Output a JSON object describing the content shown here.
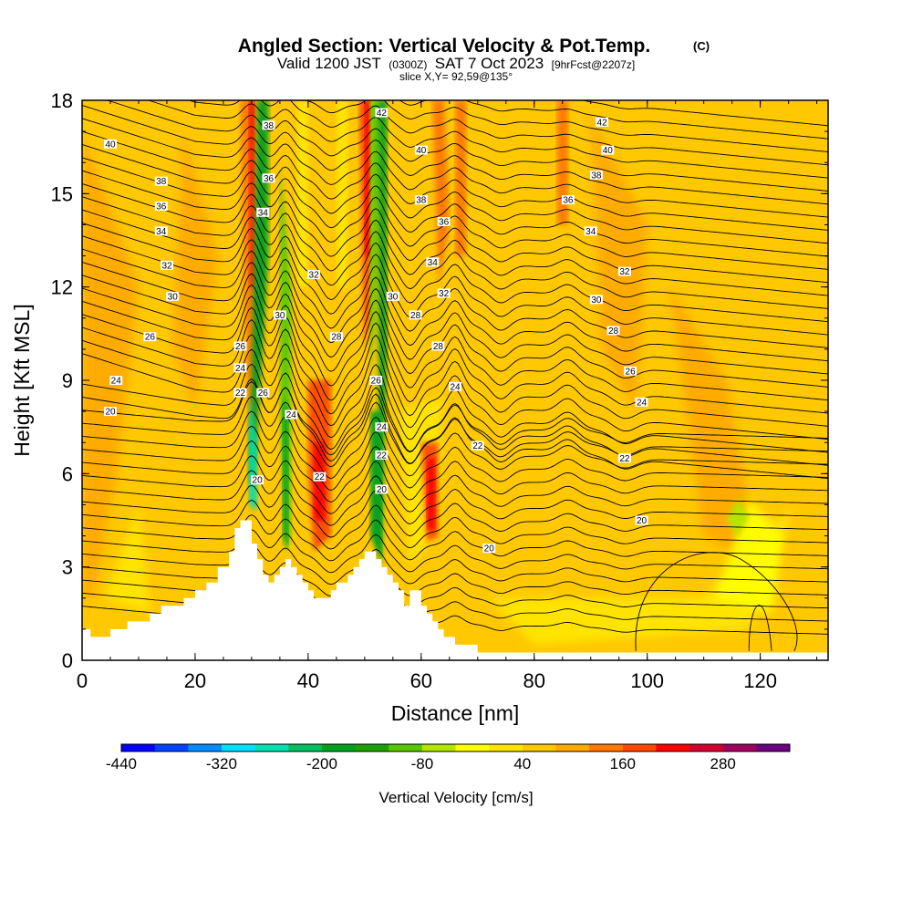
{
  "chart_data": {
    "type": "heatmap",
    "title": "Angled Section: Vertical Velocity & Pot.Temp.",
    "title_mark": "(C)",
    "subtitle_parts": [
      "Valid 1200 JST",
      "(0300Z)",
      "SAT 7 Oct 2023",
      "[9hrFcst@2207z]"
    ],
    "slice_label": "slice X,Y= 92,59@135°",
    "xlabel": "Distance [nm]",
    "ylabel": "Height [Kft MSL]",
    "xlim": [
      0,
      132
    ],
    "ylim": [
      0,
      18
    ],
    "x_ticks": [
      0,
      20,
      40,
      60,
      80,
      100,
      120
    ],
    "y_ticks": [
      0,
      3,
      6,
      9,
      12,
      15,
      18
    ],
    "colorbar": {
      "label": "Vertical Velocity [cm/s]",
      "tick_labels": [
        -440,
        -320,
        -200,
        -80,
        40,
        160,
        280
      ],
      "bins": [
        -440,
        -400,
        -360,
        -320,
        -280,
        -240,
        -200,
        -160,
        -120,
        -80,
        -40,
        0,
        40,
        80,
        120,
        160,
        200,
        240,
        280,
        320
      ],
      "colors": [
        "#0000ff",
        "#0044ff",
        "#008cff",
        "#00e0ff",
        "#00e0b0",
        "#00c060",
        "#00a020",
        "#1ea000",
        "#5ac800",
        "#b4e600",
        "#ffff00",
        "#ffe600",
        "#ffc800",
        "#ffaa00",
        "#ff7800",
        "#ff4800",
        "#ff0000",
        "#d20030",
        "#a00060",
        "#6c0080"
      ]
    },
    "terrain_profile": [
      [
        0,
        1
      ],
      [
        1.5,
        1
      ],
      [
        1.5,
        0.75
      ],
      [
        5,
        0.75
      ],
      [
        5,
        1
      ],
      [
        8,
        1
      ],
      [
        8,
        1.25
      ],
      [
        12,
        1.25
      ],
      [
        12,
        1.5
      ],
      [
        14,
        1.5
      ],
      [
        14,
        1.75
      ],
      [
        18,
        1.75
      ],
      [
        18,
        2
      ],
      [
        20,
        2
      ],
      [
        20,
        2.25
      ],
      [
        22,
        2.25
      ],
      [
        22,
        2.5
      ],
      [
        24,
        2.5
      ],
      [
        24,
        3
      ],
      [
        26,
        3
      ],
      [
        26,
        3.5
      ],
      [
        27,
        3.5
      ],
      [
        27,
        4.25
      ],
      [
        28,
        4.25
      ],
      [
        28,
        4.5
      ],
      [
        30,
        4.5
      ],
      [
        30,
        3.75
      ],
      [
        31,
        3.75
      ],
      [
        31,
        3.25
      ],
      [
        32,
        3.25
      ],
      [
        32,
        2.75
      ],
      [
        33,
        2.75
      ],
      [
        33,
        2.5
      ],
      [
        34,
        2.5
      ],
      [
        34,
        2.75
      ],
      [
        35,
        2.75
      ],
      [
        35,
        3
      ],
      [
        36,
        3
      ],
      [
        36,
        3.25
      ],
      [
        37,
        3.25
      ],
      [
        37,
        3
      ],
      [
        38,
        3
      ],
      [
        38,
        2.75
      ],
      [
        39,
        2.75
      ],
      [
        39,
        2.5
      ],
      [
        40,
        2.5
      ],
      [
        40,
        2.25
      ],
      [
        41,
        2.25
      ],
      [
        41,
        2
      ],
      [
        44,
        2
      ],
      [
        44,
        2.25
      ],
      [
        45,
        2.25
      ],
      [
        45,
        2.5
      ],
      [
        47,
        2.5
      ],
      [
        47,
        2.75
      ],
      [
        48,
        2.75
      ],
      [
        48,
        3
      ],
      [
        49,
        3
      ],
      [
        49,
        3.25
      ],
      [
        50,
        3.25
      ],
      [
        50,
        3.5
      ],
      [
        52,
        3.5
      ],
      [
        52,
        3.25
      ],
      [
        53,
        3.25
      ],
      [
        53,
        3
      ],
      [
        54,
        3
      ],
      [
        54,
        2.75
      ],
      [
        55,
        2.75
      ],
      [
        55,
        2.5
      ],
      [
        56,
        2.5
      ],
      [
        56,
        2.25
      ],
      [
        57,
        2.25
      ],
      [
        57,
        1.75
      ],
      [
        58,
        1.75
      ],
      [
        58,
        2.25
      ],
      [
        60,
        2.25
      ],
      [
        60,
        1.75
      ],
      [
        61,
        1.75
      ],
      [
        61,
        1.5
      ],
      [
        62,
        1.5
      ],
      [
        62,
        1.25
      ],
      [
        63,
        1.25
      ],
      [
        63,
        1
      ],
      [
        64,
        1
      ],
      [
        64,
        0.75
      ],
      [
        66,
        0.75
      ],
      [
        66,
        0.5
      ],
      [
        70,
        0.5
      ],
      [
        70,
        0.25
      ],
      [
        132,
        0.25
      ]
    ],
    "theta_levels": [
      20,
      22,
      24,
      26,
      28,
      30,
      32,
      34,
      36,
      38,
      40,
      42
    ],
    "theta_labels": [
      {
        "x": 5,
        "y": 8.0,
        "text": "20"
      },
      {
        "x": 6,
        "y": 9.0,
        "text": "24"
      },
      {
        "x": 12,
        "y": 10.4,
        "text": "26"
      },
      {
        "x": 16,
        "y": 11.7,
        "text": "30"
      },
      {
        "x": 15,
        "y": 12.7,
        "text": "32"
      },
      {
        "x": 14,
        "y": 13.8,
        "text": "34"
      },
      {
        "x": 14,
        "y": 14.6,
        "text": "36"
      },
      {
        "x": 14,
        "y": 15.4,
        "text": "38"
      },
      {
        "x": 5,
        "y": 16.6,
        "text": "40"
      },
      {
        "x": 28,
        "y": 10.1,
        "text": "26"
      },
      {
        "x": 28,
        "y": 9.4,
        "text": "24"
      },
      {
        "x": 28,
        "y": 8.6,
        "text": "22"
      },
      {
        "x": 31,
        "y": 5.8,
        "text": "20"
      },
      {
        "x": 32,
        "y": 8.6,
        "text": "26"
      },
      {
        "x": 35,
        "y": 11.1,
        "text": "30"
      },
      {
        "x": 33,
        "y": 17.2,
        "text": "38"
      },
      {
        "x": 33,
        "y": 15.5,
        "text": "36"
      },
      {
        "x": 32,
        "y": 14.4,
        "text": "34"
      },
      {
        "x": 37,
        "y": 7.9,
        "text": "24"
      },
      {
        "x": 42,
        "y": 5.9,
        "text": "22"
      },
      {
        "x": 41,
        "y": 12.4,
        "text": "32"
      },
      {
        "x": 45,
        "y": 10.4,
        "text": "28"
      },
      {
        "x": 52,
        "y": 9.0,
        "text": "26"
      },
      {
        "x": 53,
        "y": 7.5,
        "text": "24"
      },
      {
        "x": 53,
        "y": 6.6,
        "text": "22"
      },
      {
        "x": 53,
        "y": 5.5,
        "text": "20"
      },
      {
        "x": 53,
        "y": 17.6,
        "text": "42"
      },
      {
        "x": 60,
        "y": 16.4,
        "text": "40"
      },
      {
        "x": 60,
        "y": 14.8,
        "text": "38"
      },
      {
        "x": 64,
        "y": 14.1,
        "text": "36"
      },
      {
        "x": 62,
        "y": 12.8,
        "text": "34"
      },
      {
        "x": 64,
        "y": 11.8,
        "text": "32"
      },
      {
        "x": 55,
        "y": 11.7,
        "text": "30"
      },
      {
        "x": 59,
        "y": 11.1,
        "text": "28"
      },
      {
        "x": 63,
        "y": 10.1,
        "text": "28"
      },
      {
        "x": 66,
        "y": 8.8,
        "text": "24"
      },
      {
        "x": 70,
        "y": 6.9,
        "text": "22"
      },
      {
        "x": 72,
        "y": 3.6,
        "text": "20"
      },
      {
        "x": 92,
        "y": 17.3,
        "text": "42"
      },
      {
        "x": 93,
        "y": 16.4,
        "text": "40"
      },
      {
        "x": 91,
        "y": 15.6,
        "text": "38"
      },
      {
        "x": 86,
        "y": 14.8,
        "text": "36"
      },
      {
        "x": 90,
        "y": 13.8,
        "text": "34"
      },
      {
        "x": 96,
        "y": 12.5,
        "text": "32"
      },
      {
        "x": 91,
        "y": 11.6,
        "text": "30"
      },
      {
        "x": 94,
        "y": 10.6,
        "text": "28"
      },
      {
        "x": 97,
        "y": 9.3,
        "text": "26"
      },
      {
        "x": 99,
        "y": 8.3,
        "text": "24"
      },
      {
        "x": 96,
        "y": 6.5,
        "text": "22"
      },
      {
        "x": 99,
        "y": 4.5,
        "text": "20"
      }
    ]
  }
}
